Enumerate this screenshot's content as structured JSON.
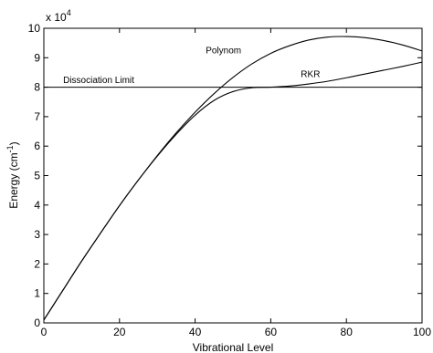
{
  "chart_data": {
    "type": "line",
    "title": "",
    "xlabel": "Vibrational Level",
    "ylabel": "Energy (cm",
    "ylabel_sup": "-1",
    "ylabel_close": ")",
    "xlim": [
      0,
      100
    ],
    "ylim": [
      0,
      10
    ],
    "y_scale_base": "x 10",
    "y_scale_exp": "4",
    "y_scale_factor": 10000,
    "x_ticks": [
      "0",
      "20",
      "40",
      "60",
      "80",
      "100"
    ],
    "x_tick_values": [
      0,
      20,
      40,
      60,
      80,
      100
    ],
    "y_ticks": [
      "0",
      "1",
      "2",
      "3",
      "4",
      "5",
      "6",
      "7",
      "8",
      "9",
      "10"
    ],
    "y_tick_values": [
      0,
      1,
      2,
      3,
      4,
      5,
      6,
      7,
      8,
      9,
      10
    ],
    "grid": false,
    "series": [
      {
        "name": "Polynom",
        "x": [
          0,
          5,
          10,
          15,
          20,
          25,
          30,
          35,
          40,
          45,
          50,
          55,
          60,
          65,
          70,
          75,
          80,
          85,
          90,
          95,
          100
        ],
        "y": [
          0.1,
          1.1,
          2.1,
          3.05,
          3.98,
          4.85,
          5.68,
          6.45,
          7.15,
          7.78,
          8.33,
          8.79,
          9.15,
          9.41,
          9.6,
          9.7,
          9.72,
          9.68,
          9.58,
          9.43,
          9.23
        ]
      },
      {
        "name": "RKR",
        "x": [
          0,
          5,
          10,
          15,
          20,
          25,
          30,
          35,
          40,
          45,
          50,
          55,
          60,
          65,
          70,
          75,
          80,
          85,
          90,
          95,
          100
        ],
        "y": [
          0.1,
          1.1,
          2.1,
          3.05,
          3.98,
          4.85,
          5.66,
          6.4,
          7.05,
          7.55,
          7.85,
          7.98,
          8.0,
          8.04,
          8.11,
          8.2,
          8.32,
          8.45,
          8.58,
          8.71,
          8.85
        ]
      }
    ],
    "reference_lines": [
      {
        "name": "Dissociation Limit",
        "y": 8.0
      }
    ],
    "annotations": [
      {
        "text": "Polynom",
        "x": 47.5,
        "y": 9.15
      },
      {
        "text": "RKR",
        "x": 70.5,
        "y": 8.35
      },
      {
        "text": "Dissociation Limit",
        "x": 14.5,
        "y": 8.15
      }
    ]
  }
}
